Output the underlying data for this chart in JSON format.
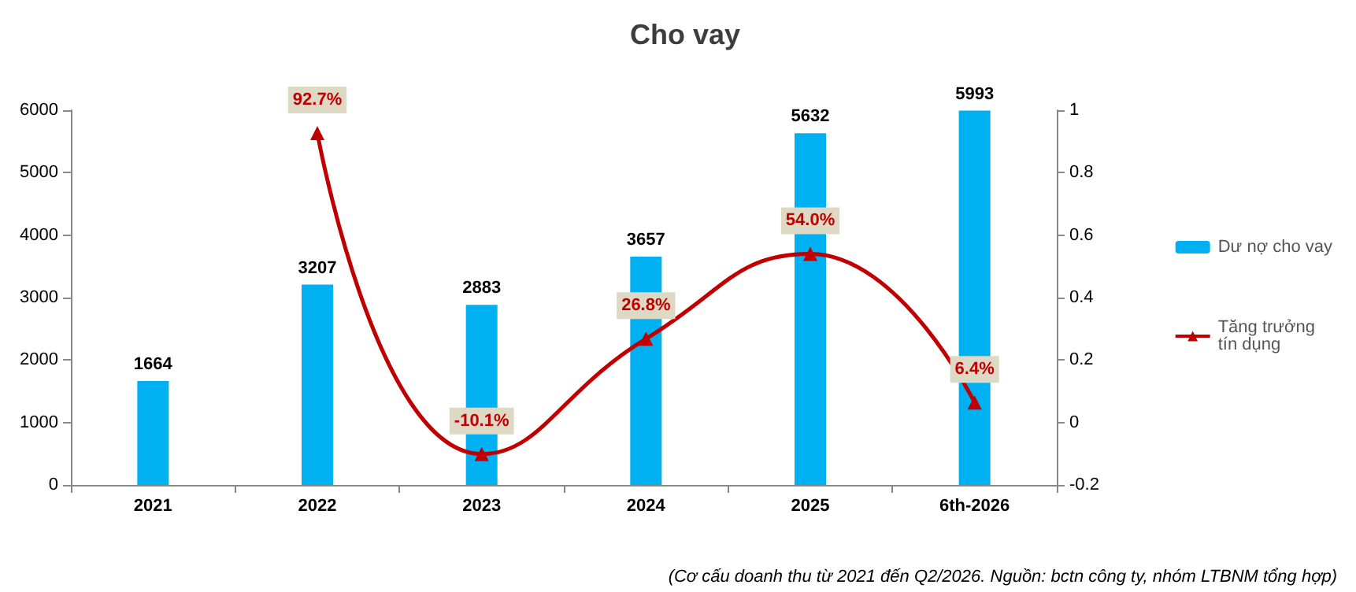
{
  "chart_data": {
    "type": "bar",
    "title": "Cho vay",
    "categories": [
      "2021",
      "2022",
      "2023",
      "2024",
      "2025",
      "6th-2026"
    ],
    "series": [
      {
        "name": "Dư nợ cho vay",
        "color": "#00b0f0",
        "values": [
          1664,
          3207,
          2883,
          3657,
          5632,
          5993
        ]
      },
      {
        "name": "Tăng trưởng tín dụng",
        "type": "line",
        "axis": "y2",
        "color": "#c00000",
        "marker": "triangle",
        "values": [
          null,
          0.927,
          -0.101,
          0.268,
          0.54,
          0.064
        ],
        "value_labels": [
          null,
          "92.7%",
          "-10.1%",
          "26.8%",
          "54.0%",
          "6.4%"
        ]
      }
    ],
    "ylim": [
      0,
      6000
    ],
    "yticks": [
      0,
      1000,
      2000,
      3000,
      4000,
      5000,
      6000
    ],
    "y2lim": [
      -0.2,
      1
    ],
    "y2ticks": [
      -0.2,
      0,
      0.2,
      0.4,
      0.6,
      0.8,
      1
    ],
    "data_labels": true,
    "grid": false,
    "legend": "right",
    "annotations": [
      "(Cơ cấu doanh thu từ 2021 đến Q2/2026. Nguồn: bctn công ty, nhóm LTBNM tổng hợp)"
    ]
  }
}
